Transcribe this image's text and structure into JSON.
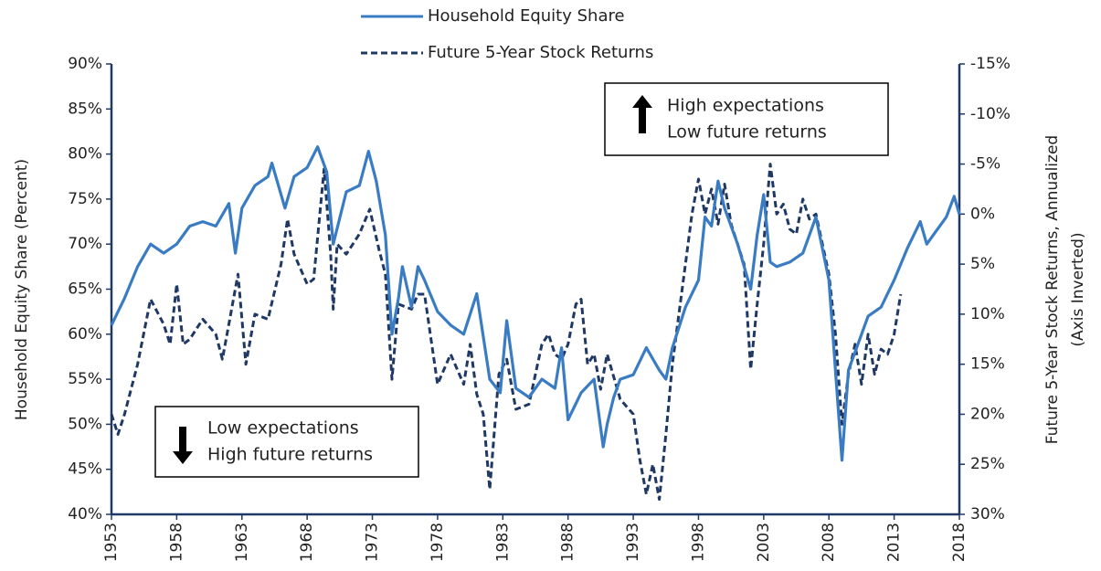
{
  "chart_data": {
    "type": "line",
    "ylabel": "Household Equity Share (Percent)",
    "y2label": [
      "Future 5-Year Stock Returns, Annualized",
      "(Axis Inverted)"
    ],
    "xlim": [
      1953,
      2018
    ],
    "xticks": [
      1953,
      1958,
      1963,
      1968,
      1973,
      1978,
      1983,
      1988,
      1993,
      1998,
      2003,
      2008,
      2013,
      2018
    ],
    "ylim": [
      40,
      90
    ],
    "yticks": [
      {
        "value": 40,
        "label": "40%"
      },
      {
        "value": 45,
        "label": "45%"
      },
      {
        "value": 50,
        "label": "50%"
      },
      {
        "value": 55,
        "label": "55%"
      },
      {
        "value": 60,
        "label": "60%"
      },
      {
        "value": 65,
        "label": "65%"
      },
      {
        "value": 70,
        "label": "70%"
      },
      {
        "value": 75,
        "label": "75%"
      },
      {
        "value": 80,
        "label": "80%"
      },
      {
        "value": 85,
        "label": "85%"
      },
      {
        "value": 90,
        "label": "90%"
      }
    ],
    "y2lim": [
      30,
      -15
    ],
    "y2ticks": [
      {
        "value": 30,
        "label": "30%"
      },
      {
        "value": 25,
        "label": "25%"
      },
      {
        "value": 20,
        "label": "20%"
      },
      {
        "value": 15,
        "label": "15%"
      },
      {
        "value": 10,
        "label": "10%"
      },
      {
        "value": 5,
        "label": "5%"
      },
      {
        "value": 0,
        "label": "0%"
      },
      {
        "value": -5,
        "label": "-5%"
      },
      {
        "value": -10,
        "label": "-10%"
      },
      {
        "value": -15,
        "label": "-15%"
      }
    ],
    "grid": false,
    "legend": "top",
    "annotations": [
      {
        "lines": [
          "High expectations",
          "Low future returns"
        ]
      },
      {
        "lines": [
          "Low expectations",
          "High future returns"
        ]
      }
    ],
    "series": [
      {
        "name": "Household Equity Share",
        "color": "#3a7cc3",
        "dash": false,
        "x": [
          1953,
          1954,
          1955,
          1956,
          1957,
          1958,
          1959,
          1960,
          1961,
          1962,
          1962.5,
          1963,
          1964,
          1965,
          1965.3,
          1966.3,
          1967,
          1968,
          1968.8,
          1969.5,
          1970,
          1971,
          1972,
          1972.7,
          1973.3,
          1974,
          1974.5,
          1975,
          1975.3,
          1976,
          1976.5,
          1977,
          1978,
          1979,
          1980,
          1981,
          1982,
          1982.8,
          1983.3,
          1984,
          1985,
          1986,
          1987,
          1987.5,
          1988,
          1989,
          1990,
          1990.7,
          1991,
          1991.5,
          1992,
          1993,
          1994,
          1995,
          1995.5,
          1996,
          1997,
          1998,
          1998.5,
          1999,
          1999.5,
          2000,
          2001,
          2002,
          2002.5,
          2003,
          2003.5,
          2004,
          2005,
          2006,
          2007,
          2008,
          2009,
          2009.5,
          2010,
          2011,
          2012,
          2013,
          2014,
          2015,
          2015.5,
          2016,
          2017,
          2017.6,
          2018
        ],
        "values": [
          61,
          64,
          67.5,
          70,
          69,
          70,
          72,
          72.5,
          72,
          74.5,
          69,
          74,
          76.5,
          77.5,
          79,
          74,
          77.5,
          78.5,
          80.8,
          78,
          70,
          75.8,
          76.5,
          80.3,
          77,
          71,
          60,
          64,
          67.5,
          63,
          67.5,
          66,
          62.5,
          61,
          60,
          64.5,
          55,
          53.5,
          61.5,
          54,
          53,
          55,
          54,
          58.5,
          50.5,
          53.5,
          55,
          47.5,
          50,
          53,
          55,
          55.5,
          58.5,
          56,
          55,
          58.5,
          63,
          66,
          73,
          72,
          77,
          74,
          70,
          65,
          71,
          75.5,
          68,
          67.5,
          68,
          69,
          73,
          66,
          46,
          56,
          58,
          62,
          63,
          66,
          69.5,
          72.5,
          70,
          71,
          73,
          75.3,
          73.3
        ]
      },
      {
        "name": "Future 5-Year Stock Returns",
        "color": "#1f3864",
        "dash": true,
        "axis": "y2",
        "x": [
          1953,
          1953.5,
          1954,
          1955,
          1956,
          1957,
          1957.5,
          1958,
          1958.5,
          1959,
          1960,
          1961,
          1961.5,
          1962,
          1962.7,
          1963.3,
          1964,
          1965,
          1966,
          1966.5,
          1967,
          1968,
          1968.5,
          1969.3,
          1969.8,
          1970,
          1970.3,
          1971,
          1972,
          1972.8,
          1973.5,
          1974,
          1974.5,
          1975,
          1976,
          1976.5,
          1977,
          1978,
          1979,
          1980,
          1980.5,
          1981,
          1981.5,
          1982,
          1982.7,
          1983.3,
          1984,
          1985,
          1986,
          1986.5,
          1987,
          1987.5,
          1988,
          1988.6,
          1989,
          1989.5,
          1990,
          1990.5,
          1991,
          1992,
          1993,
          1993.5,
          1994,
          1994.5,
          1995,
          1995.5,
          1996,
          1996.5,
          1997,
          1997.5,
          1998,
          1998.5,
          1999,
          1999.5,
          2000,
          2000.5,
          2001,
          2001.5,
          2002,
          2002.5,
          2003,
          2003.5,
          2004,
          2004.5,
          2005,
          2005.5,
          2006,
          2006.5,
          2007,
          2007.5,
          2008,
          2008.5,
          2009,
          2009.5,
          2010,
          2010.5,
          2011,
          2011.5,
          2012,
          2012.5,
          2013,
          2013.5
        ],
        "values": [
          20,
          22,
          20,
          15,
          8.5,
          11,
          13,
          7,
          13,
          12.5,
          10.5,
          12,
          14.5,
          11,
          6,
          15,
          10,
          10.5,
          5,
          0.5,
          4,
          7,
          6.5,
          -4.5,
          4,
          9.5,
          3,
          4,
          2,
          -0.5,
          3.5,
          6,
          16.5,
          9,
          9.5,
          8,
          8,
          17,
          14,
          17,
          13,
          18,
          20,
          27.5,
          16,
          14.5,
          19.5,
          19,
          13,
          12,
          14,
          14.5,
          13,
          9,
          8.5,
          15,
          14,
          17.5,
          14,
          18.5,
          20,
          24.5,
          28,
          25,
          28.5,
          22,
          15,
          10,
          5,
          0,
          -3.5,
          0,
          -2.5,
          1,
          -3,
          1,
          3,
          5,
          15.5,
          9,
          3,
          -5,
          0,
          -1,
          1.5,
          2,
          -1.5,
          0.5,
          0,
          3,
          6,
          12,
          21,
          16,
          13,
          17,
          12,
          16,
          13.5,
          14,
          12,
          8
        ]
      }
    ]
  }
}
